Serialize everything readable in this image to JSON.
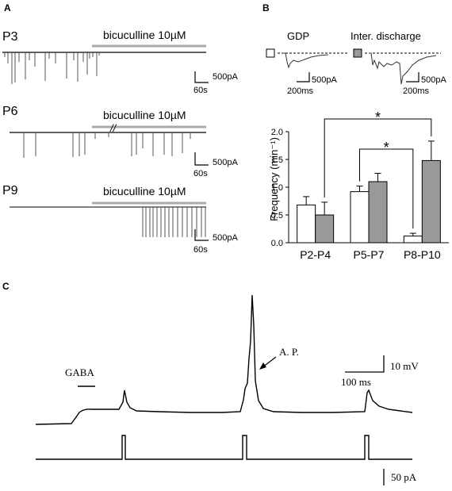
{
  "panels": {
    "A": {
      "letter": "A",
      "traces": [
        {
          "label": "P3",
          "drug": "bicuculline 10µM",
          "scale_y": "500pA",
          "scale_x": "60s"
        },
        {
          "label": "P6",
          "drug": "bicuculline 10µM",
          "scale_y": "500pA",
          "scale_x": "60s"
        },
        {
          "label": "P9",
          "drug": "bicuculline 10µM",
          "scale_y": "500pA",
          "scale_x": "60s"
        }
      ]
    },
    "B": {
      "letter": "B",
      "insets": {
        "gdp_label": "GDP",
        "inter_label": "Inter. discharge",
        "scale_y1": "500pA",
        "scale_x1": "200ms",
        "scale_y2": "500pA",
        "scale_x2": "200ms"
      },
      "significance": "*"
    },
    "C": {
      "letter": "C",
      "gaba_label": "GABA",
      "ap_label": "A. P.",
      "scale_mv": "10 mV",
      "scale_ms": "100 ms",
      "scale_pa": "50 pA"
    }
  },
  "chart_data": {
    "type": "bar",
    "ylabel": "Frequency (min⁻¹)",
    "categories": [
      "P2-P4",
      "P5-P7",
      "P8-P10"
    ],
    "ylim": [
      0,
      2.0
    ],
    "yticks": [
      "0.0",
      "0.5",
      "1.0",
      "1.5",
      "2.0"
    ],
    "series": [
      {
        "name": "GDP",
        "color": "#ffffff",
        "values": [
          0.68,
          0.92,
          0.12
        ],
        "errors": [
          0.15,
          0.1,
          0.05
        ]
      },
      {
        "name": "Inter. discharge",
        "color": "#999999",
        "values": [
          0.5,
          1.1,
          1.48
        ],
        "errors": [
          0.23,
          0.15,
          0.35
        ]
      }
    ],
    "significance": [
      {
        "from": "P2-P4 Inter. discharge",
        "to": "P8-P10 Inter. discharge",
        "label": "*"
      },
      {
        "from": "P5-P7 GDP",
        "to": "P8-P10 GDP",
        "label": "*"
      }
    ]
  }
}
